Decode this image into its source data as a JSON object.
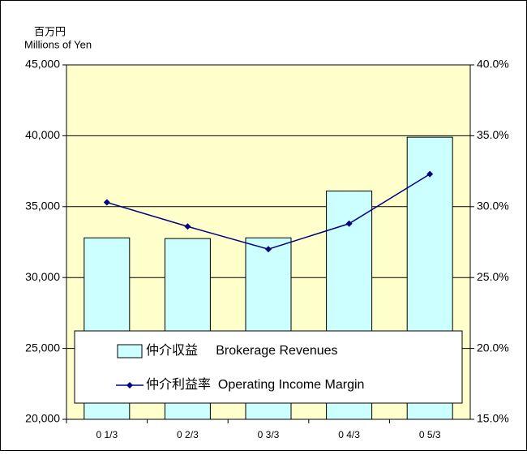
{
  "chart_data": {
    "type": "bar-line",
    "y_label_ja": "百万円",
    "y_label": "Millions of Yen",
    "categories": [
      "0 1/3",
      "0 2/3",
      "0 3/3",
      "0 4/3",
      "0 5/3"
    ],
    "series": [
      {
        "name": "仲介収益     Brokerage Revenues",
        "type": "bar",
        "color": "#ccffff",
        "values": [
          32800,
          32750,
          32800,
          36100,
          39900
        ]
      },
      {
        "name": "仲介利益率  Operating Income Margin",
        "type": "line",
        "axis": "y2",
        "color": "#000080",
        "values": [
          30.3,
          28.6,
          27.0,
          28.8,
          32.3
        ]
      }
    ],
    "ylim": [
      20000,
      45000
    ],
    "yticks": [
      {
        "value": 20000,
        "label": "20,000"
      },
      {
        "value": 25000,
        "label": "25,000"
      },
      {
        "value": 30000,
        "label": "30,000"
      },
      {
        "value": 35000,
        "label": "35,000"
      },
      {
        "value": 40000,
        "label": "40,000"
      },
      {
        "value": 45000,
        "label": "45,000"
      }
    ],
    "y2lim": [
      15,
      40
    ],
    "y2ticks": [
      {
        "value": 15,
        "label": "15.0%"
      },
      {
        "value": 20,
        "label": "20.0%"
      },
      {
        "value": 25,
        "label": "25.0%"
      },
      {
        "value": 30,
        "label": "30.0%"
      },
      {
        "value": 35,
        "label": "35.0%"
      },
      {
        "value": 40,
        "label": "40.0%"
      }
    ],
    "grid": true,
    "plot_background": "#ffffcc"
  }
}
